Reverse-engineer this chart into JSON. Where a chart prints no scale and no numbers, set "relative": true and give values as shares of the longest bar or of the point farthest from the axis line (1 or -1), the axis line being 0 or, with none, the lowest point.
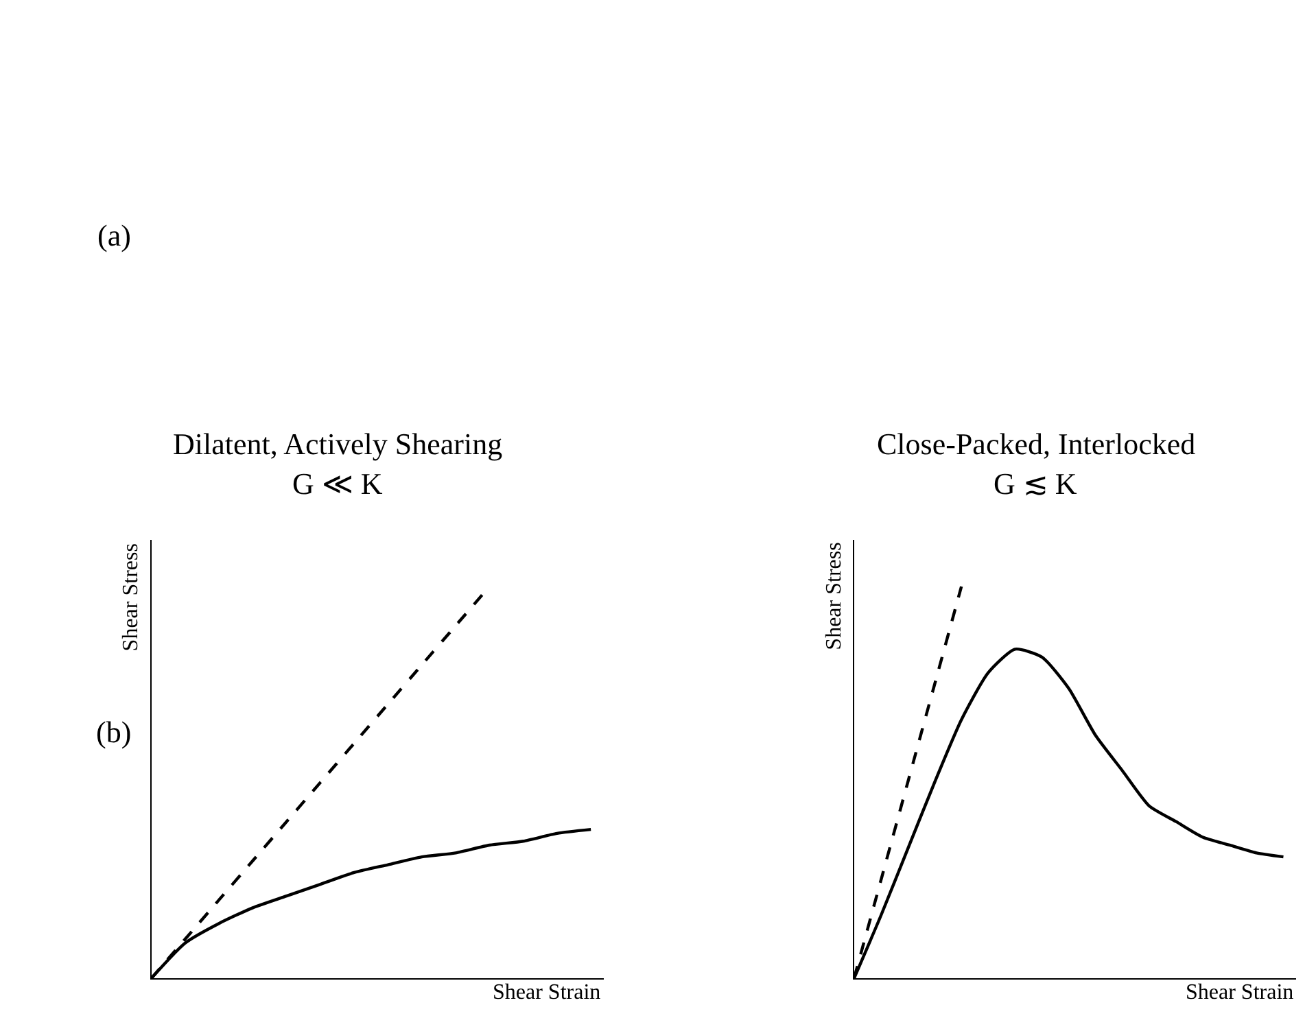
{
  "chart_data": [
    {
      "type": "line",
      "relative": true,
      "title": "Dilatent, Actively Shearing",
      "subtitle": "G ≪ K",
      "xlabel": "Shear Strain",
      "ylabel": "Shear Stress",
      "annotations": [
        "(a)",
        "(b)"
      ],
      "categories": [
        null,
        null,
        null,
        null,
        null,
        null,
        null,
        null,
        null,
        null,
        null,
        null,
        null,
        null
      ],
      "series": [
        {
          "color": "#000000",
          "line_style": "dashed",
          "values": [
            0,
            0.1,
            0.2,
            0.3,
            0.4,
            0.5,
            0.6,
            0.7,
            0.8,
            0.9,
            1.0,
            null,
            null,
            null
          ]
        },
        {
          "color": "#000000",
          "line_style": "solid",
          "values": [
            0,
            0.09,
            0.14,
            0.18,
            0.21,
            0.24,
            0.27,
            0.29,
            0.31,
            0.32,
            0.34,
            0.35,
            0.37,
            0.38
          ]
        }
      ]
    },
    {
      "type": "line",
      "relative": true,
      "title": "Close-Packed, Interlocked",
      "subtitle": "G ≲ K",
      "xlabel": "Shear Strain",
      "ylabel": "Shear Stress",
      "categories": [
        null,
        null,
        null,
        null,
        null,
        null,
        null,
        null,
        null,
        null,
        null,
        null,
        null,
        null,
        null,
        null,
        null
      ],
      "series": [
        {
          "color": "#000000",
          "line_style": "dashed",
          "values": [
            0,
            0.25,
            0.5,
            0.75,
            1.0,
            null,
            null,
            null,
            null,
            null,
            null,
            null,
            null,
            null,
            null,
            null,
            null
          ]
        },
        {
          "color": "#000000",
          "line_style": "solid",
          "values": [
            0,
            0.16,
            0.33,
            0.5,
            0.66,
            0.78,
            0.84,
            0.82,
            0.74,
            0.62,
            0.53,
            0.44,
            0.4,
            0.36,
            0.34,
            0.32,
            0.31
          ]
        }
      ]
    }
  ]
}
